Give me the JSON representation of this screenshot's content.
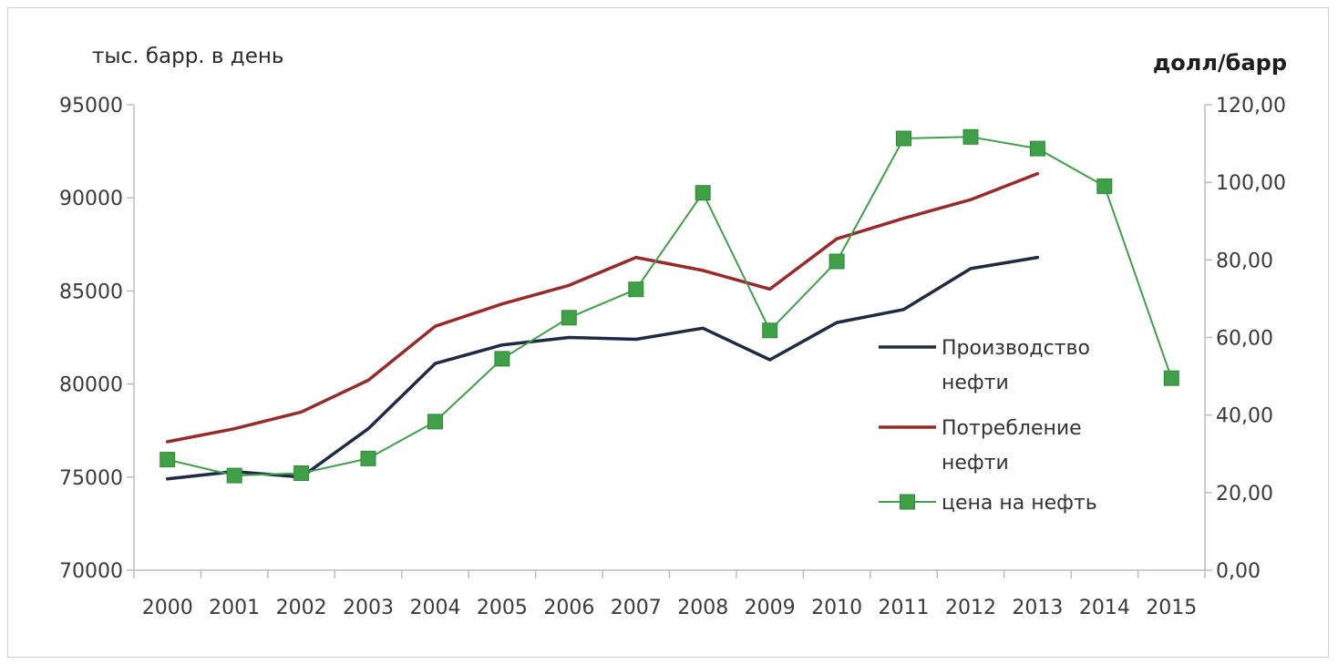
{
  "chart_data": {
    "type": "line",
    "y_left_title": "тыс. барр. в день",
    "y_right_title": "долл/барр",
    "categories": [
      "2000",
      "2001",
      "2002",
      "2003",
      "2004",
      "2005",
      "2006",
      "2007",
      "2008",
      "2009",
      "2010",
      "2011",
      "2012",
      "2013",
      "2014",
      "2015"
    ],
    "y_left": {
      "min": 70000,
      "max": 95000,
      "step": 5000,
      "tick_labels": [
        "70000",
        "75000",
        "80000",
        "85000",
        "90000",
        "95000"
      ]
    },
    "y_right": {
      "min": 0,
      "max": 120,
      "step": 20,
      "tick_labels": [
        "0,00",
        "20,00",
        "40,00",
        "60,00",
        "80,00",
        "100,00",
        "120,00"
      ]
    },
    "grid": false,
    "legend_position": "right",
    "series": [
      {
        "name": "Производство нефти",
        "name_lines": [
          "Производство",
          "нефти"
        ],
        "axis": "left",
        "color": "#1f2a44",
        "marker": "none",
        "values": [
          74900,
          75300,
          75000,
          77600,
          81100,
          82100,
          82500,
          82400,
          83000,
          81300,
          83300,
          84000,
          86200,
          86800,
          null,
          null
        ]
      },
      {
        "name": "Потребление нефти",
        "name_lines": [
          "Потребление",
          "нефти"
        ],
        "axis": "left",
        "color": "#9a2a2a",
        "marker": "none",
        "values": [
          76900,
          77600,
          78500,
          80200,
          83100,
          84300,
          85300,
          86800,
          86100,
          85100,
          87800,
          88900,
          89900,
          91300,
          null,
          null
        ]
      },
      {
        "name": "цена на нефть",
        "name_lines": [
          "цена на нефть"
        ],
        "axis": "right",
        "color": "#3fa047",
        "marker": "square",
        "values": [
          28.5,
          24.4,
          25.0,
          28.8,
          38.3,
          54.5,
          65.1,
          72.4,
          97.3,
          61.8,
          79.6,
          111.3,
          111.7,
          108.7,
          99.0,
          49.5
        ]
      }
    ]
  }
}
